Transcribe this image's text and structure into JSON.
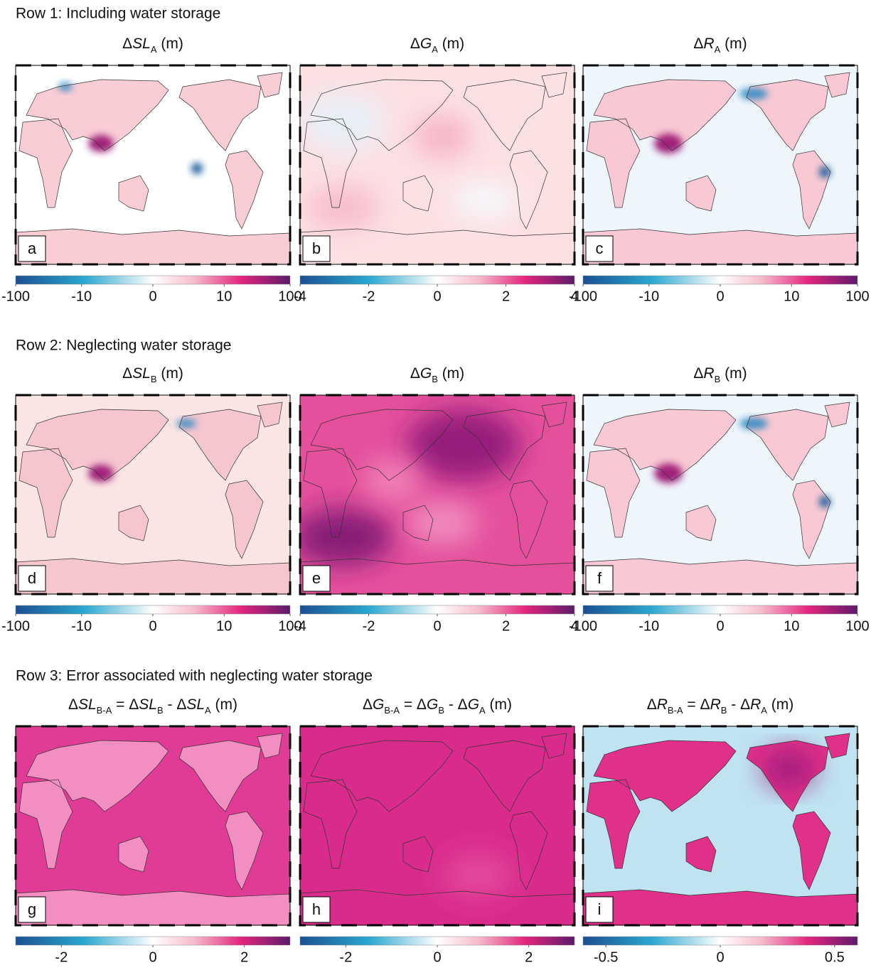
{
  "rows": [
    {
      "title": "Row 1: Including water storage",
      "panels": [
        {
          "letter": "a",
          "title": [
            {
              "text": "Δ"
            },
            {
              "italic": "SL"
            },
            {
              "sub": "A"
            },
            {
              "text": " (m)"
            }
          ],
          "colorbar": {
            "scale": "symlog",
            "clim": [
              -100,
              100
            ],
            "ticks": [
              -100,
              -10,
              0,
              10,
              100
            ]
          }
        },
        {
          "letter": "b",
          "title": [
            {
              "text": "Δ"
            },
            {
              "italic": "G"
            },
            {
              "sub": "A"
            },
            {
              "text": " (m)"
            }
          ],
          "colorbar": {
            "scale": "linear",
            "clim": [
              -4,
              4
            ],
            "ticks": [
              -4,
              -2,
              0,
              2,
              4
            ]
          }
        },
        {
          "letter": "c",
          "title": [
            {
              "text": "Δ"
            },
            {
              "italic": "R"
            },
            {
              "sub": "A"
            },
            {
              "text": " (m)"
            }
          ],
          "colorbar": {
            "scale": "symlog",
            "clim": [
              -100,
              100
            ],
            "ticks": [
              -100,
              -10,
              0,
              10,
              100
            ]
          }
        }
      ]
    },
    {
      "title": "Row 2: Neglecting water storage",
      "panels": [
        {
          "letter": "d",
          "title": [
            {
              "text": "Δ"
            },
            {
              "italic": "SL"
            },
            {
              "sub": "B"
            },
            {
              "text": " (m)"
            }
          ],
          "colorbar": {
            "scale": "symlog",
            "clim": [
              -100,
              100
            ],
            "ticks": [
              -100,
              -10,
              0,
              10,
              100
            ]
          }
        },
        {
          "letter": "e",
          "title": [
            {
              "text": "Δ"
            },
            {
              "italic": "G"
            },
            {
              "sub": "B"
            },
            {
              "text": " (m)"
            }
          ],
          "colorbar": {
            "scale": "linear",
            "clim": [
              -4,
              4
            ],
            "ticks": [
              -4,
              -2,
              0,
              2,
              4
            ]
          }
        },
        {
          "letter": "f",
          "title": [
            {
              "text": "Δ"
            },
            {
              "italic": "R"
            },
            {
              "sub": "B"
            },
            {
              "text": " (m)"
            }
          ],
          "colorbar": {
            "scale": "symlog",
            "clim": [
              -100,
              100
            ],
            "ticks": [
              -100,
              -10,
              0,
              10,
              100
            ]
          }
        }
      ]
    },
    {
      "title": "Row 3: Error associated with neglecting water storage",
      "panels": [
        {
          "letter": "g",
          "title": [
            {
              "text": "Δ"
            },
            {
              "italic": "SL"
            },
            {
              "sub": "B-A"
            },
            {
              "text": " = Δ"
            },
            {
              "italic": "SL"
            },
            {
              "sub": "B"
            },
            {
              "text": " - Δ"
            },
            {
              "italic": "SL"
            },
            {
              "sub": "A"
            },
            {
              "text": " (m)"
            }
          ],
          "colorbar": {
            "scale": "linear",
            "clim": [
              -3,
              3
            ],
            "ticks": [
              -2,
              0,
              2
            ]
          }
        },
        {
          "letter": "h",
          "title": [
            {
              "text": "Δ"
            },
            {
              "italic": "G"
            },
            {
              "sub": "B-A"
            },
            {
              "text": " = Δ"
            },
            {
              "italic": "G"
            },
            {
              "sub": "B"
            },
            {
              "text": " - Δ"
            },
            {
              "italic": "G"
            },
            {
              "sub": "A"
            },
            {
              "text": " (m)"
            }
          ],
          "colorbar": {
            "scale": "linear",
            "clim": [
              -3,
              3
            ],
            "ticks": [
              -2,
              0,
              2
            ]
          }
        },
        {
          "letter": "i",
          "title": [
            {
              "text": "Δ"
            },
            {
              "italic": "R"
            },
            {
              "sub": "B-A"
            },
            {
              "text": " = Δ"
            },
            {
              "italic": "R"
            },
            {
              "sub": "B"
            },
            {
              "text": " - Δ"
            },
            {
              "italic": "R"
            },
            {
              "sub": "A"
            },
            {
              "text": " (m)"
            }
          ],
          "colorbar": {
            "scale": "linear",
            "clim": [
              -0.6,
              0.6
            ],
            "ticks": [
              -0.5,
              0,
              0.5
            ]
          }
        }
      ]
    }
  ]
}
